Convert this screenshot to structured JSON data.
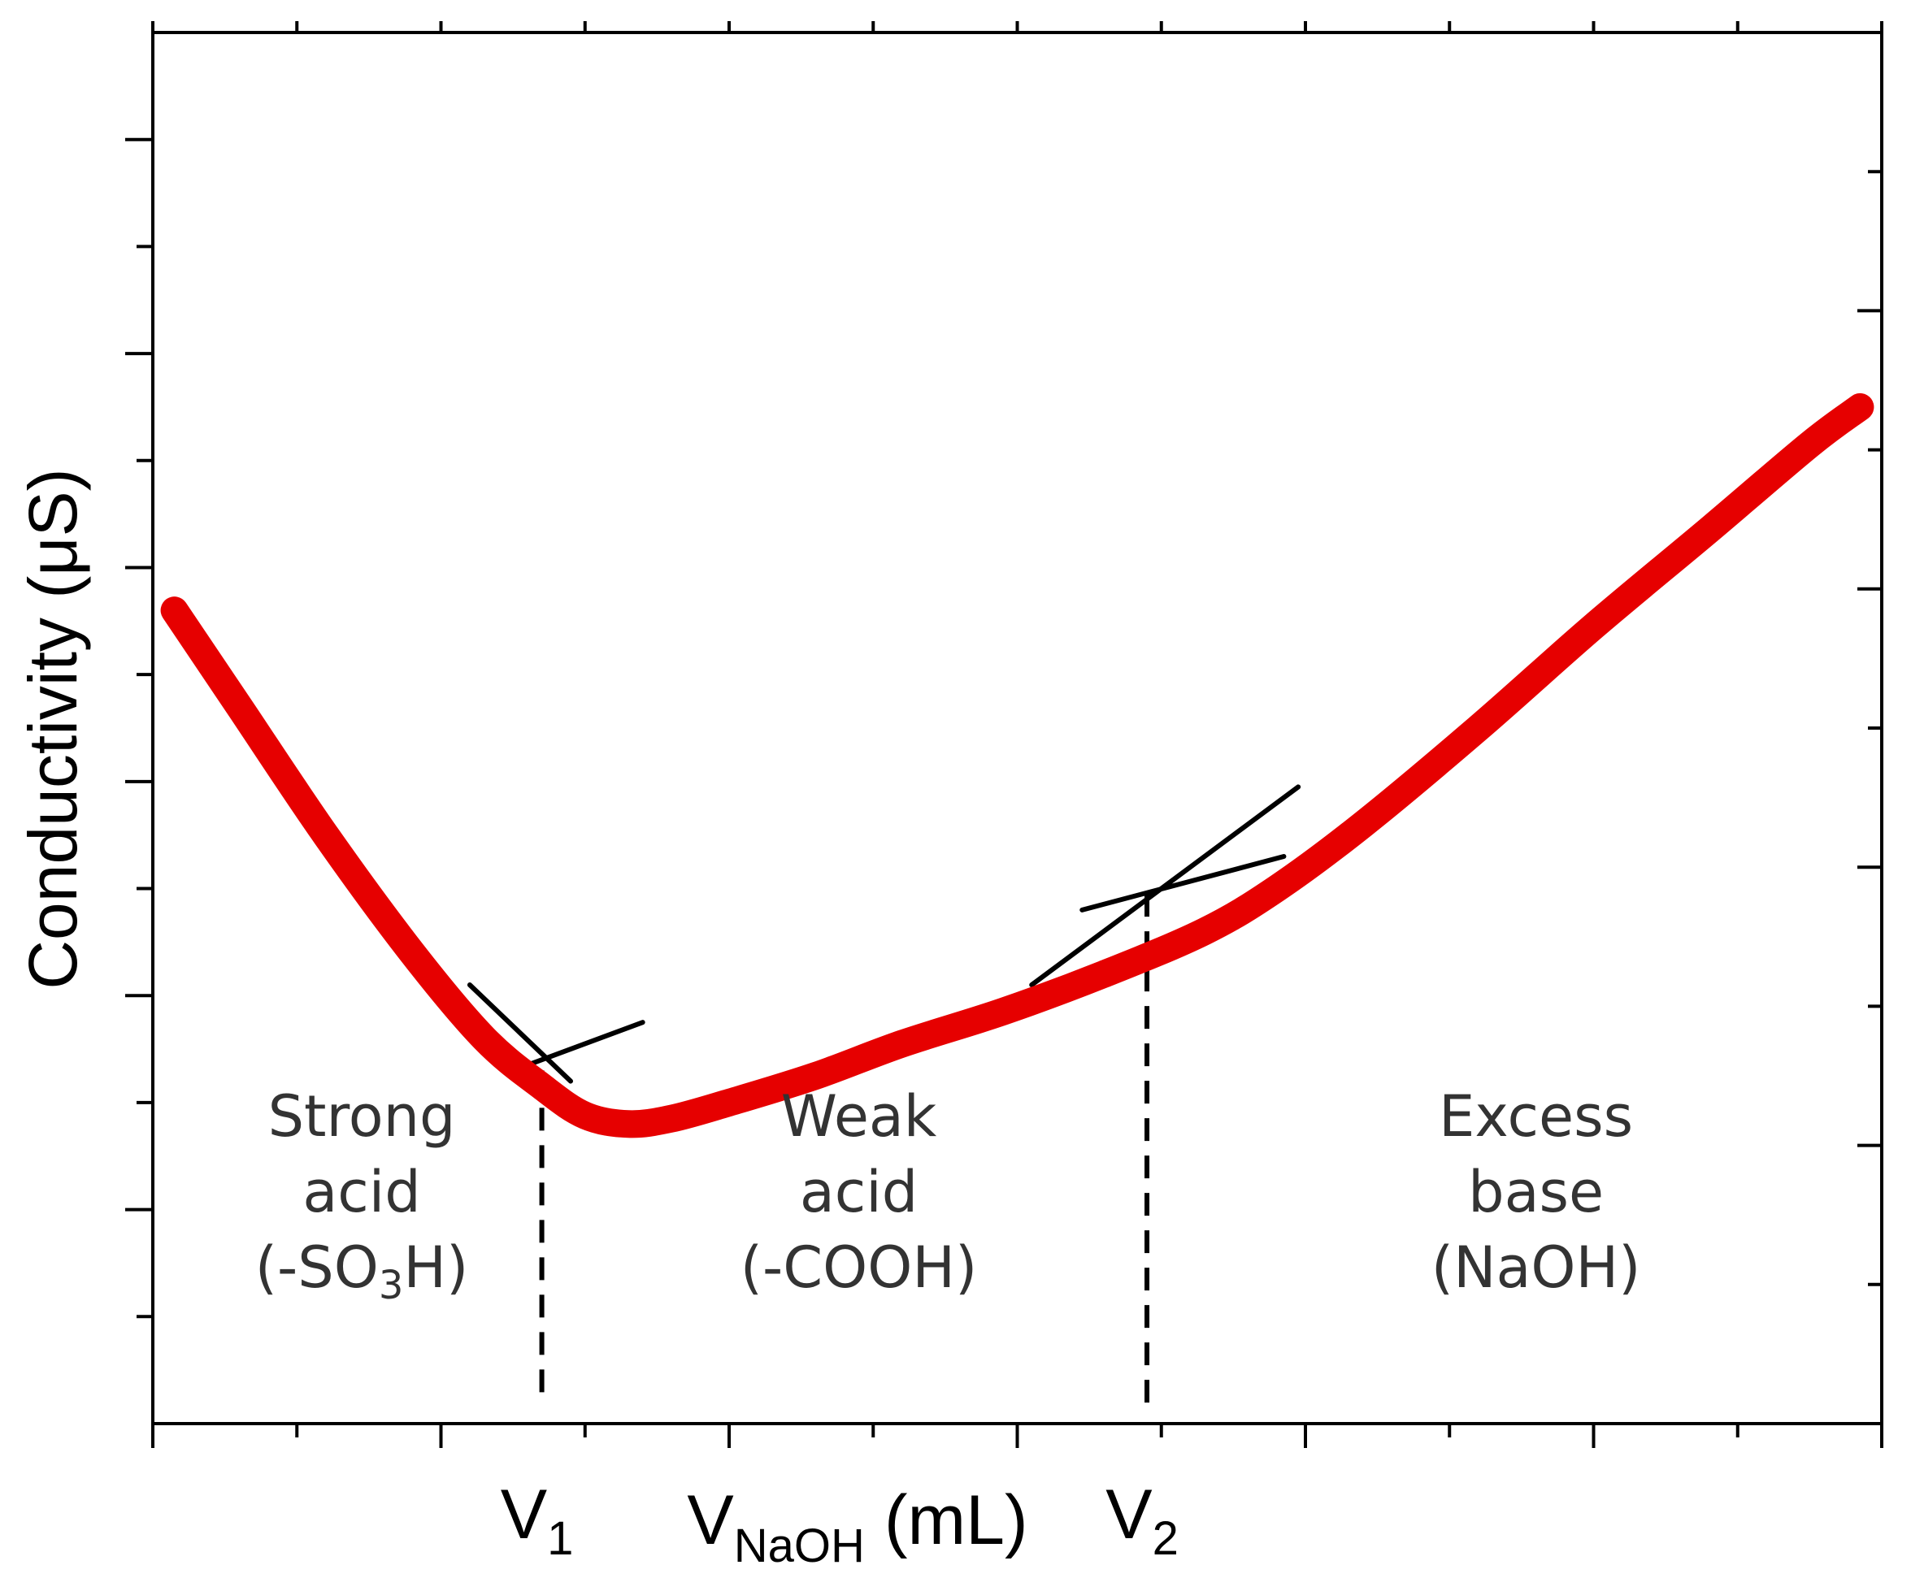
{
  "chart_data": {
    "type": "line",
    "title": "",
    "xlabel": "V",
    "xlabel_sub": "NaOH",
    "xlabel_unit": " (mL)",
    "ylabel": "Conductivity (μS)",
    "xlim": [
      0,
      12
    ],
    "ylim": [
      0,
      13
    ],
    "grid": false,
    "series": [
      {
        "name": "Conductivity",
        "color": "#e60000",
        "x": [
          0.15,
          0.6,
          1.2,
          1.8,
          2.3,
          2.7,
          3.0,
          3.3,
          3.6,
          4.0,
          4.6,
          5.2,
          5.9,
          6.6,
          7.3,
          7.8,
          8.4,
          9.2,
          10.0,
          10.8,
          11.5,
          11.85
        ],
        "y": [
          7.6,
          6.7,
          5.5,
          4.4,
          3.6,
          3.15,
          2.88,
          2.8,
          2.85,
          3.0,
          3.25,
          3.55,
          3.85,
          4.2,
          4.6,
          5.0,
          5.6,
          6.5,
          7.45,
          8.35,
          9.15,
          9.5
        ]
      }
    ],
    "tangent_lines": [
      {
        "name": "strong-acid-tangent",
        "x": [
          2.2,
          2.9
        ],
        "y": [
          4.1,
          3.2
        ]
      },
      {
        "name": "weak-acid-tangent-1",
        "x": [
          2.5,
          3.4
        ],
        "y": [
          3.3,
          3.75
        ]
      },
      {
        "name": "weak-acid-tangent-2",
        "x": [
          6.45,
          7.85
        ],
        "y": [
          4.8,
          5.3
        ]
      },
      {
        "name": "excess-base-tangent",
        "x": [
          6.1,
          7.95
        ],
        "y": [
          4.1,
          5.95
        ]
      }
    ],
    "equivalence_points": [
      {
        "label": "V",
        "subscript": "1",
        "x": 2.7,
        "y": 3.3
      },
      {
        "label": "V",
        "subscript": "2",
        "x": 6.9,
        "y": 4.95
      }
    ],
    "regions": [
      {
        "name": "strong-acid",
        "lines": [
          "Strong",
          "acid"
        ],
        "formula": {
          "pre": "(-SO",
          "sub": "3",
          "post": "H)"
        },
        "x": 1.45
      },
      {
        "name": "weak-acid",
        "lines": [
          "Weak",
          "acid"
        ],
        "formula": {
          "pre": "(-COOH)",
          "sub": "",
          "post": ""
        },
        "x": 4.9
      },
      {
        "name": "excess-base",
        "lines": [
          "Excess",
          "base"
        ],
        "formula": {
          "pre": "(NaOH)",
          "sub": "",
          "post": ""
        },
        "x": 9.6
      }
    ],
    "x_ticks_major": [
      0,
      2,
      4,
      6,
      8,
      10,
      12
    ],
    "x_ticks_minor": [
      1,
      3,
      5,
      7,
      9,
      11
    ],
    "y_ticks_left_major": [
      2,
      4,
      6,
      8,
      10,
      12
    ],
    "y_ticks_left_minor": [
      1,
      3,
      5,
      7,
      9,
      11
    ],
    "y_ticks_right_major": [
      2.6,
      5.2,
      7.8,
      10.4
    ],
    "y_ticks_right_minor": [
      1.3,
      3.9,
      6.5,
      9.1,
      11.7
    ]
  }
}
